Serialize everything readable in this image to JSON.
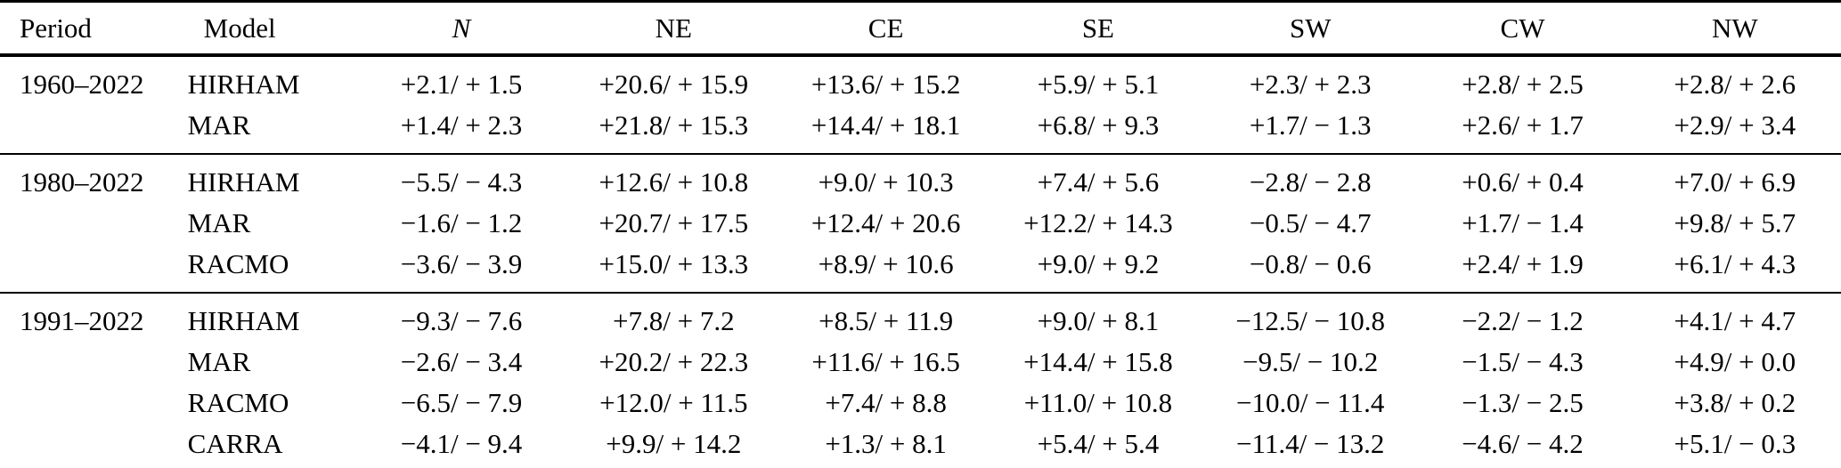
{
  "table": {
    "columns": [
      "Period",
      "Model",
      "N",
      "NE",
      "CE",
      "SE",
      "SW",
      "CW",
      "NW"
    ],
    "sections": [
      {
        "period": "1960–2022",
        "rows": [
          {
            "model": "HIRHAM",
            "values": [
              "+2.1/ + 1.5",
              "+20.6/ + 15.9",
              "+13.6/ + 15.2",
              "+5.9/ + 5.1",
              "+2.3/ + 2.3",
              "+2.8/ + 2.5",
              "+2.8/ + 2.6"
            ]
          },
          {
            "model": "MAR",
            "values": [
              "+1.4/ + 2.3",
              "+21.8/ + 15.3",
              "+14.4/ + 18.1",
              "+6.8/ + 9.3",
              "+1.7/ − 1.3",
              "+2.6/ + 1.7",
              "+2.9/ + 3.4"
            ]
          }
        ]
      },
      {
        "period": "1980–2022",
        "rows": [
          {
            "model": "HIRHAM",
            "values": [
              "−5.5/ − 4.3",
              "+12.6/ + 10.8",
              "+9.0/ + 10.3",
              "+7.4/ + 5.6",
              "−2.8/ − 2.8",
              "+0.6/ + 0.4",
              "+7.0/ + 6.9"
            ]
          },
          {
            "model": "MAR",
            "values": [
              "−1.6/ − 1.2",
              "+20.7/ + 17.5",
              "+12.4/ + 20.6",
              "+12.2/ + 14.3",
              "−0.5/ − 4.7",
              "+1.7/ − 1.4",
              "+9.8/ + 5.7"
            ]
          },
          {
            "model": "RACMO",
            "values": [
              "−3.6/ − 3.9",
              "+15.0/ + 13.3",
              "+8.9/ + 10.6",
              "+9.0/ + 9.2",
              "−0.8/ − 0.6",
              "+2.4/ + 1.9",
              "+6.1/ + 4.3"
            ]
          }
        ]
      },
      {
        "period": "1991–2022",
        "rows": [
          {
            "model": "HIRHAM",
            "values": [
              "−9.3/ − 7.6",
              "+7.8/ + 7.2",
              "+8.5/ + 11.9",
              "+9.0/ + 8.1",
              "−12.5/ − 10.8",
              "−2.2/ − 1.2",
              "+4.1/ + 4.7"
            ]
          },
          {
            "model": "MAR",
            "values": [
              "−2.6/ − 3.4",
              "+20.2/ + 22.3",
              "+11.6/ + 16.5",
              "+14.4/ + 15.8",
              "−9.5/ − 10.2",
              "−1.5/ − 4.3",
              "+4.9/ + 0.0"
            ]
          },
          {
            "model": "RACMO",
            "values": [
              "−6.5/ − 7.9",
              "+12.0/ + 11.5",
              "+7.4/ + 8.8",
              "+11.0/ + 10.8",
              "−10.0/ − 11.4",
              "−1.3/ − 2.5",
              "+3.8/ + 0.2"
            ]
          },
          {
            "model": "CARRA",
            "values": [
              "−4.1/ − 9.4",
              "+9.9/ + 14.2",
              "+1.3/ + 8.1",
              "+5.4/ + 5.4",
              "−11.4/ − 13.2",
              "−4.6/ − 4.2",
              "+5.1/ − 0.3"
            ]
          }
        ]
      }
    ]
  }
}
